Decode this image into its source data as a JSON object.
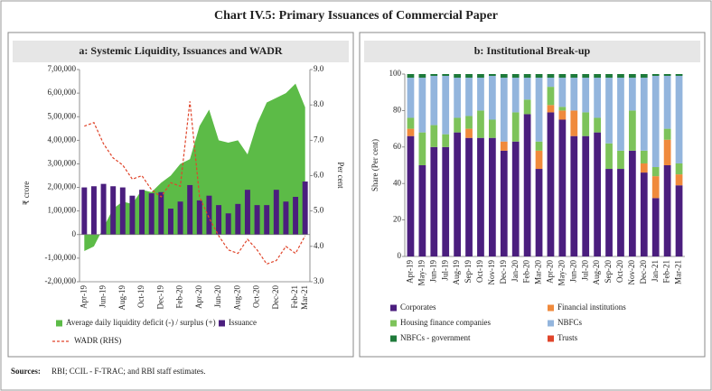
{
  "title": "Chart IV.5: Primary Issuances of Commercial Paper",
  "sources": {
    "label": "Sources:",
    "text": "RBI; CCIL - F-TRAC; and RBI staff estimates."
  },
  "chart_data": [
    {
      "type": "combo",
      "title": "a: Systemic Liquidity, Issuances and WADR",
      "ylabel": "₹ crore",
      "y2label": "Per cent",
      "categories": [
        "Apr-19",
        null,
        "Jun-19",
        null,
        "Aug-19",
        null,
        "Oct-19",
        null,
        "Dec-19",
        null,
        "Feb-20",
        null,
        "Apr-20",
        null,
        "Jun-20",
        null,
        "Aug-20",
        null,
        "Oct-20",
        null,
        "Dec-20",
        null,
        "Feb-21",
        "Mar-21"
      ],
      "ylim": [
        -200000,
        700000
      ],
      "yticks": [
        {
          "value": -200000,
          "label": "-2,00,000"
        },
        {
          "value": -100000,
          "label": "-1,00,000"
        },
        0,
        {
          "value": 100000,
          "label": "1,00,000"
        },
        {
          "value": 200000,
          "label": "2,00,000"
        },
        {
          "value": 300000,
          "label": "3,00,000"
        },
        {
          "value": 400000,
          "label": "4,00,000"
        },
        {
          "value": 500000,
          "label": "5,00,000"
        },
        {
          "value": 600000,
          "label": "6,00,000"
        },
        {
          "value": 700000,
          "label": "7,00,000"
        }
      ],
      "y2lim": [
        3,
        9
      ],
      "y2ticks": [
        {
          "value": 3,
          "label": "3.0"
        },
        {
          "value": 4,
          "label": "4.0"
        },
        {
          "value": 5,
          "label": "5.0"
        },
        {
          "value": 6,
          "label": "6.0"
        },
        {
          "value": 7,
          "label": "7.0"
        },
        {
          "value": 8,
          "label": "8.0"
        },
        {
          "value": 9,
          "label": "9.0"
        }
      ],
      "series": [
        {
          "name": "Average daily liquidity deficit (-) / surplus (+)",
          "type": "area",
          "color": "#5cbb47",
          "values": [
            -70000,
            -50000,
            30000,
            110000,
            140000,
            130000,
            190000,
            180000,
            220000,
            250000,
            300000,
            320000,
            460000,
            530000,
            400000,
            390000,
            400000,
            340000,
            470000,
            560000,
            580000,
            600000,
            640000,
            540000
          ]
        },
        {
          "name": "Issuance",
          "type": "bar",
          "color": "#4b1e7e",
          "values": [
            200000,
            205000,
            215000,
            205000,
            200000,
            165000,
            190000,
            175000,
            180000,
            110000,
            140000,
            210000,
            145000,
            165000,
            125000,
            90000,
            130000,
            190000,
            125000,
            125000,
            190000,
            140000,
            160000,
            225000
          ]
        },
        {
          "name": "WADR (RHS)",
          "type": "line",
          "axis": "y2",
          "dashed": true,
          "color": "#e0452b",
          "values": [
            7.4,
            7.5,
            6.9,
            6.5,
            6.3,
            5.9,
            6.0,
            5.6,
            5.4,
            5.8,
            5.7,
            8.1,
            5.4,
            4.8,
            4.3,
            3.9,
            3.8,
            4.2,
            3.9,
            3.5,
            3.6,
            4.0,
            3.8,
            4.3
          ]
        }
      ]
    },
    {
      "type": "stacked_bar",
      "title": "b: Institutional Break-up",
      "ylabel": "Share (Per cent)",
      "categories": [
        "Apr-19",
        "May-19",
        "Jun-19",
        "Jul-19",
        "Aug-19",
        "Sep-19",
        "Oct-19",
        "Nov-19",
        "Dec-19",
        "Jan-20",
        "Feb-20",
        "Mar-20",
        "Apr-20",
        "May-20",
        "Jun-20",
        "Jul-20",
        "Aug-20",
        "Sep-20",
        "Oct-20",
        "Nov-20",
        "Dec-20",
        "Jan-21",
        "Feb-21",
        "Mar-21"
      ],
      "ylim": [
        0,
        100
      ],
      "yticks": [
        0,
        20,
        40,
        60,
        80,
        100
      ],
      "series": [
        {
          "name": "Corporates",
          "color": "#4b1e7e",
          "values": [
            66,
            50,
            60,
            60,
            68,
            65,
            65,
            65,
            58,
            63,
            78,
            48,
            79,
            75,
            66,
            66,
            68,
            48,
            48,
            58,
            46,
            32,
            50,
            39
          ]
        },
        {
          "name": "Financial institutions",
          "color": "#f08a3c",
          "values": [
            4,
            0,
            0,
            0,
            0,
            5,
            0,
            0,
            5,
            0,
            0,
            10,
            4,
            5,
            14,
            0,
            0,
            0,
            0,
            0,
            5,
            12,
            14,
            6
          ]
        },
        {
          "name": "Housing finance companies",
          "color": "#7dc35a",
          "values": [
            6,
            18,
            12,
            7,
            8,
            7,
            15,
            10,
            0,
            16,
            8,
            5,
            10,
            2,
            0,
            13,
            8,
            14,
            10,
            22,
            7,
            5,
            6,
            6
          ]
        },
        {
          "name": "NBFCs",
          "color": "#93b5dd",
          "values": [
            22,
            30,
            27,
            32,
            22,
            21,
            18,
            24,
            35,
            19,
            12,
            35,
            5,
            16,
            18,
            19,
            22,
            36,
            40,
            18,
            40,
            50,
            29,
            48
          ]
        },
        {
          "name": "NBFCs - government",
          "color": "#1e7a3a",
          "values": [
            2,
            2,
            1,
            1,
            2,
            2,
            2,
            1,
            2,
            2,
            2,
            2,
            2,
            2,
            2,
            2,
            2,
            2,
            2,
            2,
            2,
            1,
            1,
            1
          ]
        },
        {
          "name": "Trusts",
          "color": "#e0452b",
          "values": [
            0,
            0,
            0,
            0,
            0,
            0,
            0,
            0,
            0,
            0,
            0,
            0,
            0,
            0,
            0,
            0,
            0,
            0,
            0,
            0,
            0,
            0,
            0,
            0
          ]
        }
      ]
    }
  ]
}
